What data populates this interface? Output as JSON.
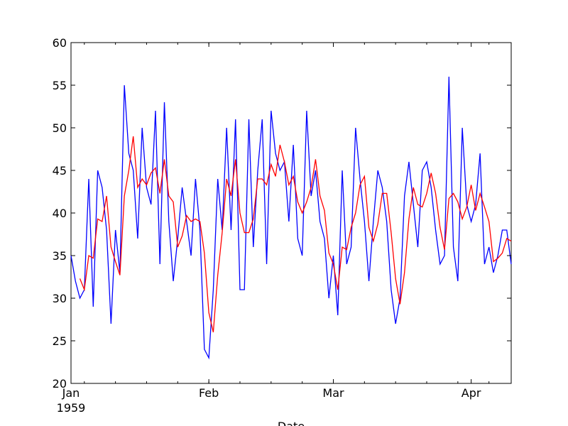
{
  "chart_data": {
    "type": "line",
    "xlabel": "Date",
    "ylabel": "",
    "ylim": [
      20,
      60
    ],
    "y_ticks": [
      "20",
      "25",
      "30",
      "35",
      "40",
      "45",
      "50",
      "55",
      "60"
    ],
    "x_ticks": [
      {
        "label": "Jan",
        "sublabel": "1959",
        "date": "1959-01-01"
      },
      {
        "label": "Feb",
        "sublabel": "",
        "date": "1959-02-01"
      },
      {
        "label": "Mar",
        "sublabel": "",
        "date": "1959-03-01"
      },
      {
        "label": "Apr",
        "sublabel": "",
        "date": "1959-04-01"
      }
    ],
    "xlim": [
      "1959-01-01",
      "1959-04-10"
    ],
    "grid": false,
    "series": [
      {
        "color": "#0000ff",
        "start": "1959-01-01",
        "values": [
          35,
          32,
          30,
          31,
          44,
          29,
          45,
          43,
          38,
          27,
          38,
          33,
          55,
          47,
          45,
          37,
          50,
          43,
          41,
          52,
          34,
          53,
          39,
          32,
          37,
          43,
          39,
          35,
          44,
          38,
          24,
          23,
          31,
          44,
          38,
          50,
          38,
          51,
          31,
          31,
          51,
          36,
          45,
          51,
          34,
          52,
          47,
          45,
          46,
          39,
          48,
          37,
          35,
          52,
          42,
          45,
          39,
          37,
          30,
          35,
          28,
          45,
          34,
          36,
          50,
          44,
          39,
          32,
          39,
          45,
          43,
          39,
          31,
          27,
          30,
          42,
          46,
          41,
          36,
          45,
          46,
          43,
          38,
          34,
          35,
          56,
          36,
          32,
          50,
          41,
          39,
          41,
          47,
          34,
          36,
          33,
          35,
          38,
          38,
          34
        ]
      },
      {
        "color": "#ff0000",
        "start": "1959-01-03",
        "values": [
          32.3,
          31.0,
          35.0,
          34.7,
          39.3,
          39.0,
          42.0,
          36.0,
          34.3,
          32.7,
          42.0,
          45.0,
          49.0,
          43.0,
          44.0,
          43.3,
          44.7,
          45.3,
          42.3,
          46.3,
          42.0,
          41.3,
          36.0,
          37.3,
          39.7,
          39.0,
          39.3,
          39.0,
          35.3,
          28.3,
          26.0,
          32.7,
          37.7,
          44.0,
          42.0,
          46.3,
          40.0,
          37.7,
          37.7,
          39.3,
          44.0,
          44.0,
          43.3,
          45.7,
          44.3,
          48.0,
          46.0,
          43.3,
          44.3,
          41.3,
          40.0,
          41.3,
          43.0,
          46.3,
          42.0,
          40.3,
          35.3,
          34.0,
          31.0,
          36.0,
          35.7,
          38.3,
          40.0,
          43.3,
          44.3,
          38.3,
          36.7,
          38.7,
          42.3,
          42.3,
          37.7,
          32.3,
          29.3,
          33.0,
          39.3,
          43.0,
          41.0,
          40.7,
          42.3,
          44.7,
          42.3,
          38.3,
          35.7,
          41.7,
          42.3,
          41.3,
          39.3,
          40.7,
          43.3,
          40.3,
          42.3,
          40.7,
          39.0,
          34.3,
          34.7,
          35.3,
          37.0,
          36.7
        ]
      }
    ]
  }
}
